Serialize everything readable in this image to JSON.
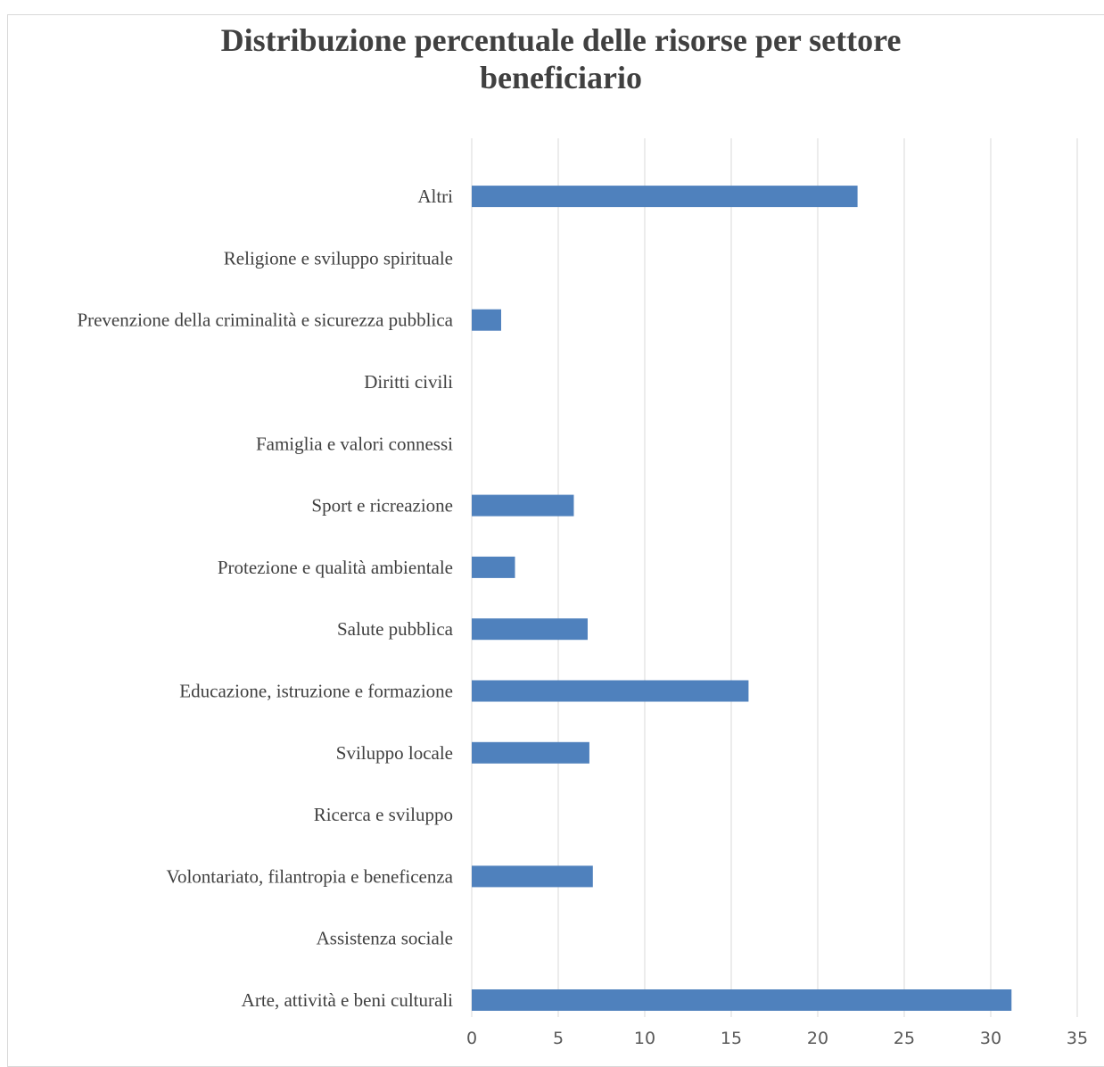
{
  "chart_data": {
    "type": "bar",
    "orientation": "horizontal",
    "title_lines": [
      "Distribuzione percentuale delle risorse per settore",
      "beneficiario"
    ],
    "categories": [
      "Arte, attività e beni culturali",
      "Assistenza sociale",
      "Volontariato, filantropia e beneficenza",
      "Ricerca e sviluppo",
      "Sviluppo locale",
      "Educazione, istruzione e formazione",
      "Salute pubblica",
      "Protezione e qualità ambientale",
      "Sport e ricreazione",
      "Famiglia e valori connessi",
      "Diritti civili",
      "Prevenzione della criminalità e sicurezza pubblica",
      "Religione e sviluppo spirituale",
      "Altri"
    ],
    "values": [
      31.2,
      0,
      7.0,
      0,
      6.8,
      16.0,
      6.7,
      2.5,
      5.9,
      0,
      0,
      1.7,
      0,
      22.3
    ],
    "xlim": [
      0,
      35
    ],
    "xticks": [
      0,
      5,
      10,
      15,
      20,
      25,
      30,
      35
    ],
    "grid": true,
    "bar_color": "#4f81bd",
    "grid_color": "#d9d9d9",
    "xlabel": "",
    "ylabel": ""
  }
}
